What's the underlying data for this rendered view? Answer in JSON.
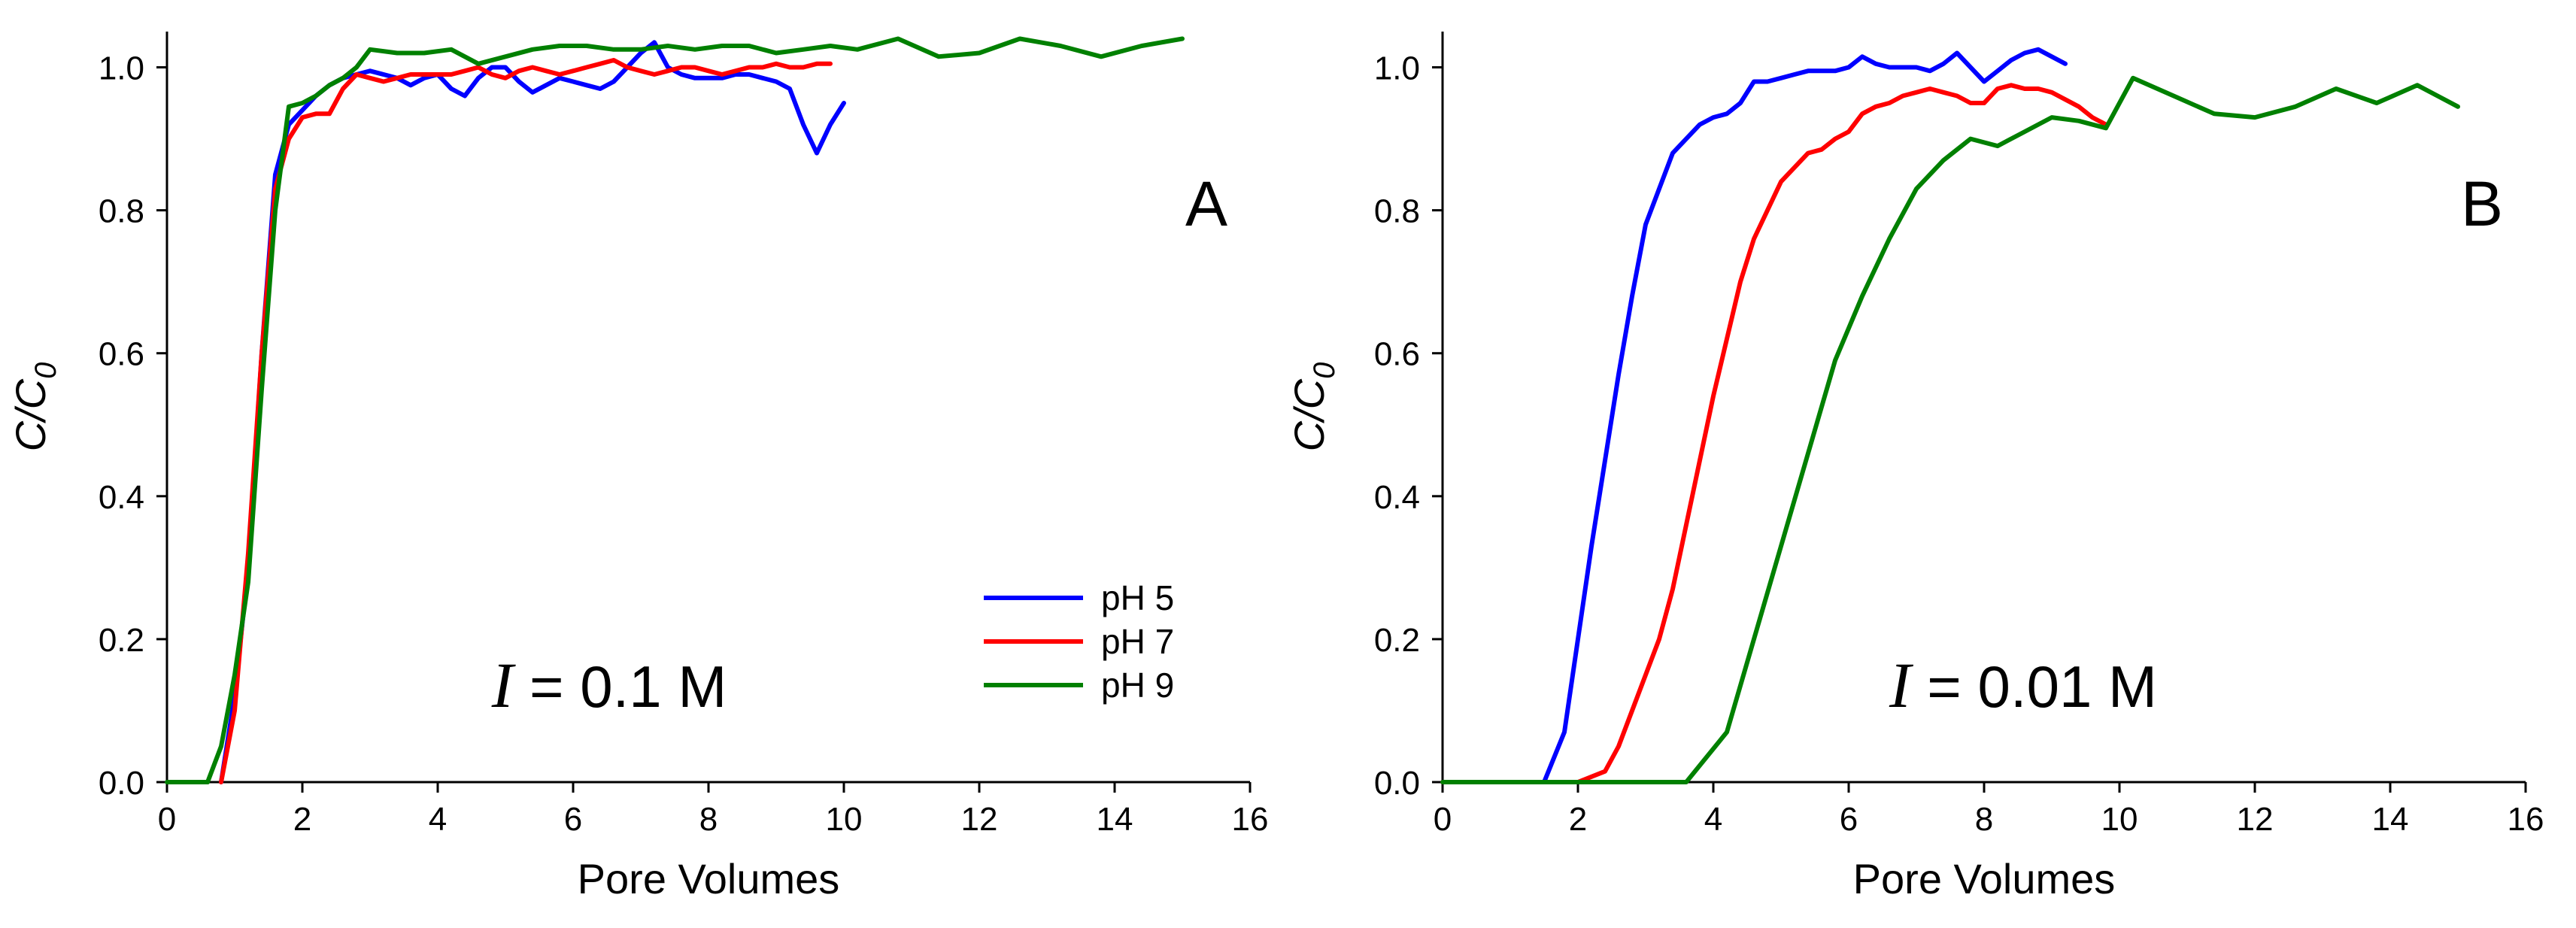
{
  "chart_data": [
    {
      "type": "line",
      "panel_label": "A",
      "annotation": {
        "italic": "I",
        "rest": " = 0.1 M"
      },
      "xlabel": "Pore Volumes",
      "ylabel": {
        "main": "C/C",
        "sub": "0"
      },
      "xlim": [
        0,
        16
      ],
      "ylim": [
        0,
        1.05
      ],
      "xticks": [
        0,
        2,
        4,
        6,
        8,
        10,
        12,
        14,
        16
      ],
      "yticks": [
        0.0,
        0.2,
        0.4,
        0.6,
        0.8,
        1.0
      ],
      "grid": false,
      "legend_position": "bottom-right",
      "series": [
        {
          "name": "pH 5",
          "color": "#0000ff",
          "x": [
            0.8,
            1.0,
            1.2,
            1.4,
            1.6,
            1.8,
            2.0,
            2.2,
            2.4,
            2.6,
            2.8,
            3.0,
            3.2,
            3.4,
            3.6,
            3.8,
            4.0,
            4.2,
            4.4,
            4.6,
            4.8,
            5.0,
            5.2,
            5.4,
            5.6,
            5.8,
            6.0,
            6.2,
            6.4,
            6.6,
            6.8,
            7.0,
            7.2,
            7.4,
            7.6,
            7.8,
            8.0,
            8.2,
            8.4,
            8.6,
            8.8,
            9.0,
            9.2,
            9.4,
            9.6,
            9.8,
            10.0
          ],
          "y": [
            0.0,
            0.12,
            0.3,
            0.6,
            0.85,
            0.92,
            0.94,
            0.96,
            0.975,
            0.985,
            0.99,
            0.995,
            0.99,
            0.985,
            0.975,
            0.985,
            0.99,
            0.97,
            0.96,
            0.985,
            1.0,
            1.0,
            0.98,
            0.965,
            0.975,
            0.985,
            0.98,
            0.975,
            0.97,
            0.98,
            1.0,
            1.02,
            1.035,
            1.0,
            0.99,
            0.985,
            0.985,
            0.985,
            0.99,
            0.99,
            0.985,
            0.98,
            0.97,
            0.92,
            0.88,
            0.92,
            0.95
          ]
        },
        {
          "name": "pH 7",
          "color": "#ff0000",
          "x": [
            0.8,
            1.0,
            1.2,
            1.4,
            1.6,
            1.8,
            2.0,
            2.2,
            2.4,
            2.6,
            2.8,
            3.0,
            3.2,
            3.4,
            3.6,
            3.8,
            4.0,
            4.2,
            4.4,
            4.6,
            4.8,
            5.0,
            5.2,
            5.4,
            5.6,
            5.8,
            6.0,
            6.2,
            6.4,
            6.6,
            6.8,
            7.0,
            7.2,
            7.4,
            7.6,
            7.8,
            8.0,
            8.2,
            8.4,
            8.6,
            8.8,
            9.0,
            9.2,
            9.4,
            9.6,
            9.8
          ],
          "y": [
            0.0,
            0.1,
            0.32,
            0.6,
            0.83,
            0.9,
            0.93,
            0.935,
            0.935,
            0.97,
            0.99,
            0.985,
            0.98,
            0.985,
            0.99,
            0.99,
            0.99,
            0.99,
            0.995,
            1.0,
            0.99,
            0.985,
            0.995,
            1.0,
            0.995,
            0.99,
            0.995,
            1.0,
            1.005,
            1.01,
            1.0,
            0.995,
            0.99,
            0.995,
            1.0,
            1.0,
            0.995,
            0.99,
            0.995,
            1.0,
            1.0,
            1.005,
            1.0,
            1.0,
            1.005,
            1.005
          ]
        },
        {
          "name": "pH 9",
          "color": "#008000",
          "x": [
            0.0,
            0.6,
            0.8,
            1.0,
            1.2,
            1.4,
            1.6,
            1.8,
            2.0,
            2.2,
            2.4,
            2.6,
            2.8,
            3.0,
            3.4,
            3.8,
            4.2,
            4.6,
            5.0,
            5.4,
            5.8,
            6.2,
            6.6,
            7.0,
            7.4,
            7.8,
            8.2,
            8.6,
            9.0,
            9.4,
            9.8,
            10.2,
            10.8,
            11.4,
            12.0,
            12.6,
            13.2,
            13.8,
            14.4,
            15.0
          ],
          "y": [
            0.0,
            0.0,
            0.05,
            0.15,
            0.28,
            0.55,
            0.8,
            0.945,
            0.95,
            0.96,
            0.975,
            0.985,
            1.0,
            1.025,
            1.02,
            1.02,
            1.025,
            1.005,
            1.015,
            1.025,
            1.03,
            1.03,
            1.025,
            1.025,
            1.03,
            1.025,
            1.03,
            1.03,
            1.02,
            1.025,
            1.03,
            1.025,
            1.04,
            1.015,
            1.02,
            1.04,
            1.03,
            1.015,
            1.03,
            1.04
          ]
        }
      ]
    },
    {
      "type": "line",
      "panel_label": "B",
      "annotation": {
        "italic": "I",
        "rest": " = 0.01 M"
      },
      "xlabel": "Pore Volumes",
      "ylabel": {
        "main": "C/C",
        "sub": "0"
      },
      "xlim": [
        0,
        16
      ],
      "ylim": [
        0,
        1.05
      ],
      "xticks": [
        0,
        2,
        4,
        6,
        8,
        10,
        12,
        14,
        16
      ],
      "yticks": [
        0.0,
        0.2,
        0.4,
        0.6,
        0.8,
        1.0
      ],
      "grid": false,
      "series": [
        {
          "name": "pH 5",
          "color": "#0000ff",
          "x": [
            0.0,
            1.5,
            1.8,
            2.0,
            2.2,
            2.4,
            2.6,
            2.8,
            3.0,
            3.2,
            3.4,
            3.6,
            3.8,
            4.0,
            4.2,
            4.4,
            4.6,
            4.8,
            5.0,
            5.2,
            5.4,
            5.6,
            5.8,
            6.0,
            6.2,
            6.4,
            6.6,
            6.8,
            7.0,
            7.2,
            7.4,
            7.6,
            7.8,
            8.0,
            8.2,
            8.4,
            8.6,
            8.8,
            9.0,
            9.2
          ],
          "y": [
            0.0,
            0.0,
            0.07,
            0.2,
            0.33,
            0.45,
            0.57,
            0.68,
            0.78,
            0.83,
            0.88,
            0.9,
            0.92,
            0.93,
            0.935,
            0.95,
            0.98,
            0.98,
            0.985,
            0.99,
            0.995,
            0.995,
            0.995,
            1.0,
            1.015,
            1.005,
            1.0,
            1.0,
            1.0,
            0.995,
            1.005,
            1.02,
            1.0,
            0.98,
            0.995,
            1.01,
            1.02,
            1.025,
            1.015,
            1.005
          ]
        },
        {
          "name": "pH 7",
          "color": "#ff0000",
          "x": [
            0.0,
            2.0,
            2.4,
            2.6,
            2.8,
            3.0,
            3.2,
            3.4,
            3.6,
            3.8,
            4.0,
            4.2,
            4.4,
            4.6,
            4.8,
            5.0,
            5.2,
            5.4,
            5.6,
            5.8,
            6.0,
            6.2,
            6.4,
            6.6,
            6.8,
            7.0,
            7.2,
            7.4,
            7.6,
            7.8,
            8.0,
            8.2,
            8.4,
            8.6,
            8.8,
            9.0,
            9.2,
            9.4,
            9.6,
            9.8
          ],
          "y": [
            0.0,
            0.0,
            0.015,
            0.05,
            0.1,
            0.15,
            0.2,
            0.27,
            0.36,
            0.45,
            0.54,
            0.62,
            0.7,
            0.76,
            0.8,
            0.84,
            0.86,
            0.88,
            0.885,
            0.9,
            0.91,
            0.935,
            0.945,
            0.95,
            0.96,
            0.965,
            0.97,
            0.965,
            0.96,
            0.95,
            0.95,
            0.97,
            0.975,
            0.97,
            0.97,
            0.965,
            0.955,
            0.945,
            0.93,
            0.92
          ]
        },
        {
          "name": "pH 9",
          "color": "#008000",
          "x": [
            0.0,
            3.6,
            4.2,
            4.6,
            5.0,
            5.4,
            5.8,
            6.2,
            6.6,
            7.0,
            7.4,
            7.8,
            8.2,
            8.6,
            9.0,
            9.4,
            9.8,
            10.2,
            10.8,
            11.4,
            12.0,
            12.6,
            13.2,
            13.8,
            14.4,
            15.0
          ],
          "y": [
            0.0,
            0.0,
            0.07,
            0.2,
            0.33,
            0.46,
            0.59,
            0.68,
            0.76,
            0.83,
            0.87,
            0.9,
            0.89,
            0.91,
            0.93,
            0.925,
            0.915,
            0.985,
            0.96,
            0.935,
            0.93,
            0.945,
            0.97,
            0.95,
            0.975,
            0.945
          ]
        }
      ]
    }
  ]
}
